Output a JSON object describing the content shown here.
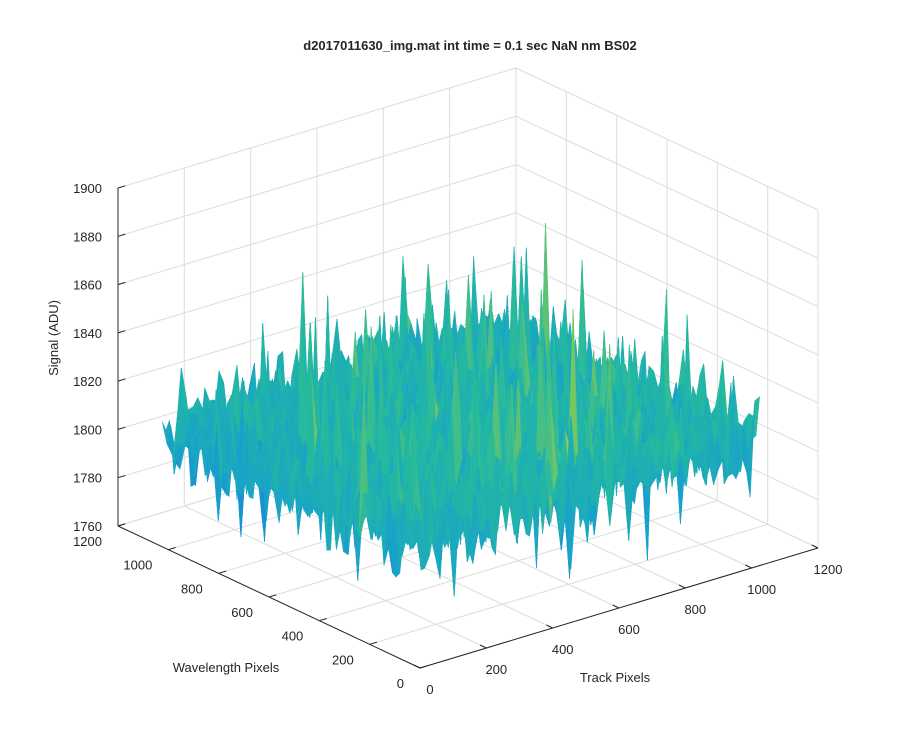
{
  "chart_data": {
    "type": "surface",
    "title": "d2017011630_img.mat int time = 0.1 sec  NaN nm BS02",
    "xlabel": "Track Pixels",
    "ylabel": "Wavelength Pixels",
    "zlabel": "Signal (ADU)",
    "xlim": [
      0,
      1200
    ],
    "ylim": [
      0,
      1200
    ],
    "zlim": [
      1760,
      1900
    ],
    "xticks": [
      "0",
      "200",
      "400",
      "600",
      "800",
      "1000",
      "1200"
    ],
    "yticks": [
      "0",
      "200",
      "400",
      "600",
      "800",
      "1000",
      "1200"
    ],
    "zticks": [
      "1760",
      "1780",
      "1800",
      "1820",
      "1840",
      "1860",
      "1880",
      "1900"
    ],
    "grid": true,
    "colormap": "parula",
    "data_extent": {
      "x": [
        0,
        1024
      ],
      "y": [
        0,
        1024
      ]
    },
    "signal_summary": {
      "mean": 1808,
      "min": 1760,
      "max": 1885
    },
    "colors": {
      "low": "#1f7ad8",
      "mid": "#21b4a8",
      "high": "#e3c93a",
      "axis": "#262626",
      "grid": "#dcdcdc"
    }
  }
}
